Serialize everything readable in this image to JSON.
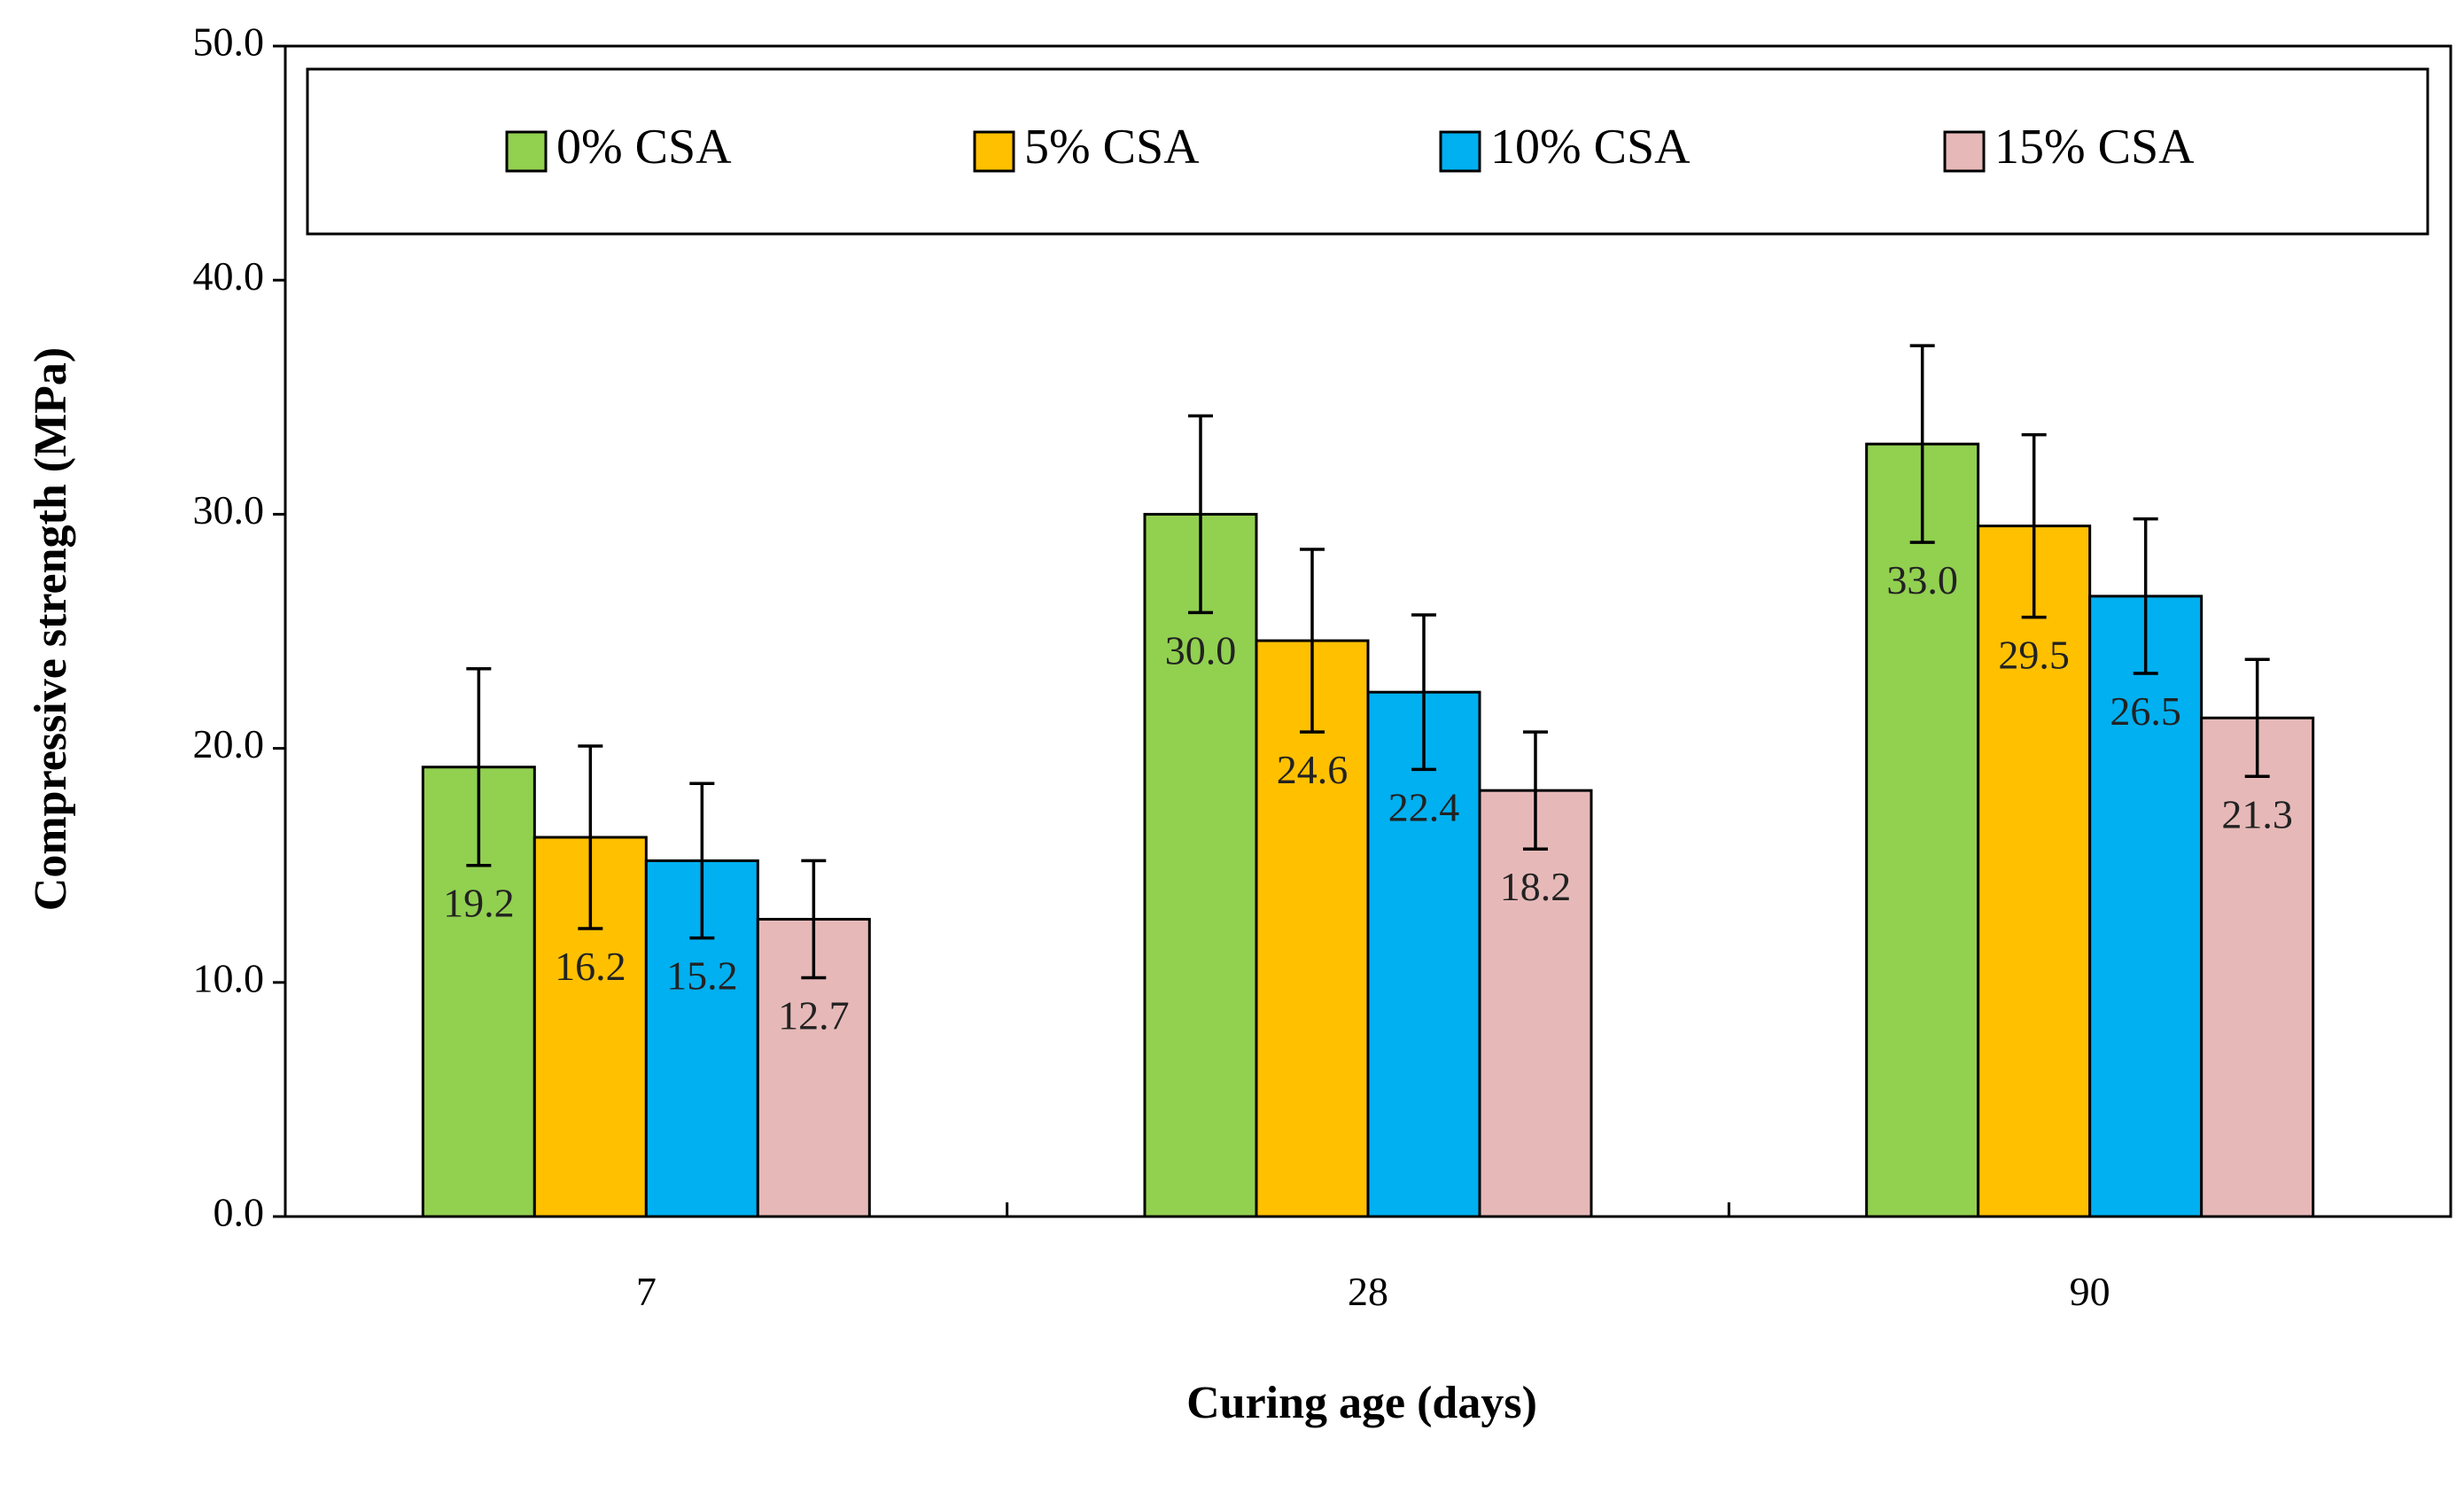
{
  "chart_data": {
    "type": "bar",
    "title": "",
    "xlabel": "Curing age (days)",
    "ylabel": "Compressive strength (MPa)",
    "ylim": [
      0,
      50
    ],
    "yticks": [
      0,
      10,
      20,
      30,
      40,
      50
    ],
    "ytick_labels": [
      "0.0",
      "10.0",
      "20.0",
      "30.0",
      "40.0",
      "50.0"
    ],
    "categories": [
      "7",
      "28",
      "90"
    ],
    "legend_position": "top-inside",
    "series": [
      {
        "name": "0% CSA",
        "color": "#92D050",
        "values": [
          19.2,
          30.0,
          33.0
        ],
        "labels": [
          "19.2",
          "30.0",
          "33.0"
        ],
        "error": [
          4.2,
          4.2,
          4.2
        ]
      },
      {
        "name": "5% CSA",
        "color": "#FFC000",
        "values": [
          16.2,
          24.6,
          29.5
        ],
        "labels": [
          "16.2",
          "24.6",
          "29.5"
        ],
        "error": [
          3.9,
          3.9,
          3.9
        ]
      },
      {
        "name": "10% CSA",
        "color": "#00B0F0",
        "values": [
          15.2,
          22.4,
          26.5
        ],
        "labels": [
          "15.2",
          "22.4",
          "26.5"
        ],
        "error": [
          3.3,
          3.3,
          3.3
        ]
      },
      {
        "name": "15% CSA",
        "color": "#E6B9B8",
        "values": [
          12.7,
          18.2,
          21.3
        ],
        "labels": [
          "12.7",
          "18.2",
          "21.3"
        ],
        "error": [
          2.5,
          2.5,
          2.5
        ]
      }
    ]
  }
}
